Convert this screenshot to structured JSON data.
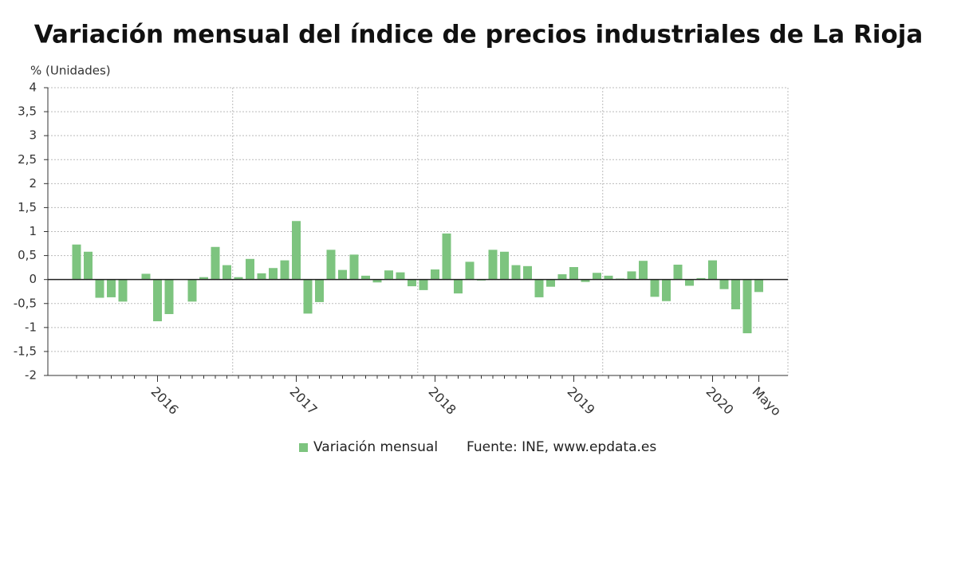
{
  "chart_data": {
    "type": "bar",
    "title": "Variación mensual del índice de precios industriales de La Rioja",
    "y_axis_label": "% (Unidades)",
    "source": "Fuente: INE, www.epdata.es",
    "categories": [
      null,
      null,
      null,
      null,
      null,
      null,
      null,
      "2016",
      null,
      null,
      null,
      null,
      null,
      null,
      null,
      null,
      null,
      null,
      null,
      "2017",
      null,
      null,
      null,
      null,
      null,
      null,
      null,
      null,
      null,
      null,
      null,
      "2018",
      null,
      null,
      null,
      null,
      null,
      null,
      null,
      null,
      null,
      null,
      null,
      "2019",
      null,
      null,
      null,
      null,
      null,
      null,
      null,
      null,
      null,
      null,
      null,
      "2020",
      null,
      null,
      null,
      "Mayo"
    ],
    "series": [
      {
        "name": "Variación mensual",
        "color": "#7dc47f",
        "values": [
          0.73,
          0.58,
          -0.38,
          -0.37,
          -0.46,
          0,
          0.12,
          -0.87,
          -0.72,
          0,
          -0.46,
          0.05,
          0.68,
          0.3,
          0.05,
          0.43,
          0.13,
          0.24,
          0.4,
          1.22,
          -0.71,
          -0.47,
          0.62,
          0.2,
          0.52,
          0.08,
          -0.06,
          0.19,
          0.15,
          -0.14,
          -0.22,
          0.21,
          0.96,
          -0.29,
          0.37,
          -0.02,
          0.62,
          0.58,
          0.3,
          0.28,
          -0.37,
          -0.15,
          0.11,
          0.26,
          -0.05,
          0.14,
          0.08,
          0.02,
          0.17,
          0.39,
          -0.36,
          -0.45,
          0.31,
          -0.13,
          0.03,
          0.4,
          -0.2,
          -0.62,
          -1.12,
          -0.26
        ]
      }
    ],
    "ylim": [
      -2,
      4
    ],
    "yticks": [
      -2,
      {
        "value": -1.5,
        "label": "-1,5"
      },
      -1,
      {
        "value": -0.5,
        "label": "-0,5"
      },
      0,
      {
        "value": 0.5,
        "label": "0,5"
      },
      1,
      {
        "value": 1.5,
        "label": "1,5"
      },
      2,
      {
        "value": 2.5,
        "label": "2,5"
      },
      3,
      {
        "value": 3.5,
        "label": "3,5"
      },
      4
    ],
    "grid": true
  }
}
